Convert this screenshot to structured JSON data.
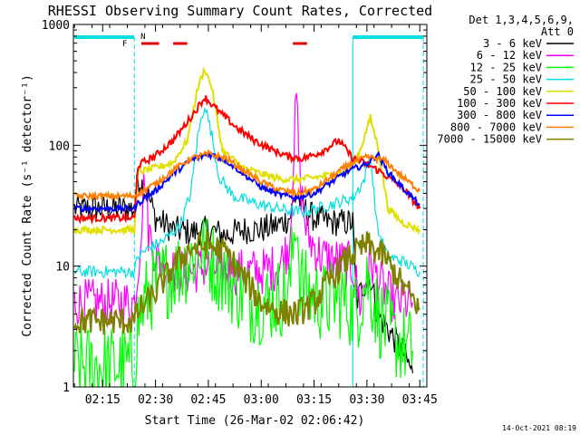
{
  "chart_data": {
    "type": "line",
    "title": "RHESSI Observing Summary Count Rates, Corrected",
    "xlabel": "Start Time (26-Mar-02 02:06:42)",
    "ylabel": "Corrected Count Rate (s⁻¹ detector⁻¹)",
    "xlim": [
      "02:06:42",
      "03:47:00"
    ],
    "ylim": [
      1,
      1000
    ],
    "yscale": "log",
    "x_ticks": [
      "02:15",
      "02:30",
      "02:45",
      "03:00",
      "03:15",
      "03:30",
      "03:45"
    ],
    "y_ticks": [
      "1",
      "10",
      "100",
      "1000"
    ],
    "legend_header": [
      "Det 1,3,4,5,6,9,",
      "Att 0"
    ],
    "legend_position": "right",
    "footer_date": "14-Oct-2021 08:19",
    "flags": [
      {
        "label": "F",
        "color": "#e00000"
      },
      {
        "label": "N",
        "color": "#00e0e0"
      }
    ],
    "series": [
      {
        "name": "3 - 6 keV",
        "color": "#000000",
        "points": [
          [
            "02:07",
            30
          ],
          [
            "02:24",
            30
          ],
          [
            "02:25",
            55
          ],
          [
            "02:28",
            38
          ],
          [
            "02:30",
            25
          ],
          [
            "02:35",
            20
          ],
          [
            "02:40",
            19
          ],
          [
            "02:45",
            20
          ],
          [
            "02:50",
            18
          ],
          [
            "02:55",
            20
          ],
          [
            "03:00",
            20
          ],
          [
            "03:05",
            22
          ],
          [
            "03:08",
            25
          ],
          [
            "03:10",
            40
          ],
          [
            "03:12",
            30
          ],
          [
            "03:15",
            25
          ],
          [
            "03:20",
            23
          ],
          [
            "03:26",
            23
          ],
          [
            "03:27",
            5
          ],
          [
            "03:29",
            7
          ],
          [
            "03:31",
            8
          ],
          [
            "03:33",
            4
          ],
          [
            "03:36",
            3
          ],
          [
            "03:40",
            2
          ],
          [
            "03:43",
            1.3
          ]
        ]
      },
      {
        "name": "6 - 12 keV",
        "color": "#ff00ff",
        "points": [
          [
            "02:07",
            5
          ],
          [
            "02:24",
            5
          ],
          [
            "02:25",
            9
          ],
          [
            "02:27",
            60
          ],
          [
            "02:28",
            20
          ],
          [
            "02:30",
            12
          ],
          [
            "02:35",
            9
          ],
          [
            "02:40",
            9
          ],
          [
            "02:45",
            10
          ],
          [
            "02:50",
            9
          ],
          [
            "02:55",
            9
          ],
          [
            "03:00",
            9
          ],
          [
            "03:05",
            10
          ],
          [
            "03:08",
            15
          ],
          [
            "03:10",
            250
          ],
          [
            "03:11",
            50
          ],
          [
            "03:13",
            18
          ],
          [
            "03:17",
            12
          ],
          [
            "03:22",
            11
          ],
          [
            "03:26",
            10
          ],
          [
            "03:28",
            5
          ],
          [
            "03:31",
            11
          ],
          [
            "03:34",
            7
          ],
          [
            "03:38",
            5
          ],
          [
            "03:43",
            5
          ]
        ]
      },
      {
        "name": "12 - 25 keV",
        "color": "#00ff00",
        "points": [
          [
            "02:07",
            1.5
          ],
          [
            "02:24",
            1.5
          ],
          [
            "02:25",
            3.5
          ],
          [
            "02:28",
            6
          ],
          [
            "02:33",
            8
          ],
          [
            "02:38",
            10
          ],
          [
            "02:43",
            14
          ],
          [
            "02:47",
            10
          ],
          [
            "02:52",
            7
          ],
          [
            "02:57",
            5
          ],
          [
            "03:02",
            5
          ],
          [
            "03:08",
            6
          ],
          [
            "03:10",
            30
          ],
          [
            "03:11",
            8
          ],
          [
            "03:13",
            6
          ],
          [
            "03:18",
            5
          ],
          [
            "03:23",
            5.5
          ],
          [
            "03:27",
            4
          ],
          [
            "03:30",
            8
          ],
          [
            "03:33",
            4
          ],
          [
            "03:38",
            2.5
          ],
          [
            "03:43",
            2
          ]
        ]
      },
      {
        "name": "25 - 50 keV",
        "color": "#00e0e0",
        "points": [
          [
            "02:07",
            9
          ],
          [
            "02:24",
            9
          ],
          [
            "02:25",
            12
          ],
          [
            "02:28",
            14
          ],
          [
            "02:32",
            16
          ],
          [
            "02:37",
            22
          ],
          [
            "02:40",
            40
          ],
          [
            "02:42",
            120
          ],
          [
            "02:44",
            220
          ],
          [
            "02:46",
            120
          ],
          [
            "02:48",
            55
          ],
          [
            "02:52",
            38
          ],
          [
            "02:57",
            34
          ],
          [
            "03:02",
            31
          ],
          [
            "03:07",
            29
          ],
          [
            "03:11",
            28
          ],
          [
            "03:16",
            30
          ],
          [
            "03:21",
            33
          ],
          [
            "03:26",
            37
          ],
          [
            "03:29",
            50
          ],
          [
            "03:31",
            80
          ],
          [
            "03:33",
            20
          ],
          [
            "03:36",
            12
          ],
          [
            "03:40",
            11
          ],
          [
            "03:45",
            9
          ]
        ]
      },
      {
        "name": "50 - 100 keV",
        "color": "#e0e000",
        "points": [
          [
            "02:07",
            20
          ],
          [
            "02:24",
            20
          ],
          [
            "02:25",
            60
          ],
          [
            "02:30",
            65
          ],
          [
            "02:35",
            72
          ],
          [
            "02:39",
            110
          ],
          [
            "02:42",
            300
          ],
          [
            "02:44",
            430
          ],
          [
            "02:46",
            300
          ],
          [
            "02:49",
            90
          ],
          [
            "02:55",
            65
          ],
          [
            "03:00",
            58
          ],
          [
            "03:05",
            53
          ],
          [
            "03:10",
            52
          ],
          [
            "03:15",
            54
          ],
          [
            "03:20",
            57
          ],
          [
            "03:25",
            62
          ],
          [
            "03:28",
            90
          ],
          [
            "03:31",
            170
          ],
          [
            "03:33",
            100
          ],
          [
            "03:36",
            30
          ],
          [
            "03:40",
            23
          ],
          [
            "03:45",
            20
          ]
        ]
      },
      {
        "name": "100 - 300 keV",
        "color": "#ff0000",
        "points": [
          [
            "02:07",
            25
          ],
          [
            "02:24",
            25
          ],
          [
            "02:25",
            68
          ],
          [
            "02:30",
            82
          ],
          [
            "02:35",
            110
          ],
          [
            "02:40",
            170
          ],
          [
            "02:44",
            250
          ],
          [
            "02:48",
            190
          ],
          [
            "02:53",
            140
          ],
          [
            "02:58",
            110
          ],
          [
            "03:03",
            92
          ],
          [
            "03:08",
            80
          ],
          [
            "03:12",
            78
          ],
          [
            "03:17",
            88
          ],
          [
            "03:22",
            110
          ],
          [
            "03:26",
            78
          ],
          [
            "03:30",
            70
          ],
          [
            "03:34",
            60
          ],
          [
            "03:40",
            45
          ],
          [
            "03:45",
            30
          ]
        ]
      },
      {
        "name": "300 - 800 keV",
        "color": "#0000ff",
        "points": [
          [
            "02:07",
            30
          ],
          [
            "02:24",
            30
          ],
          [
            "02:25",
            33
          ],
          [
            "02:30",
            42
          ],
          [
            "02:35",
            58
          ],
          [
            "02:40",
            75
          ],
          [
            "02:45",
            85
          ],
          [
            "02:50",
            75
          ],
          [
            "02:55",
            58
          ],
          [
            "03:00",
            45
          ],
          [
            "03:05",
            39
          ],
          [
            "03:10",
            37
          ],
          [
            "03:15",
            40
          ],
          [
            "03:20",
            50
          ],
          [
            "03:25",
            62
          ],
          [
            "03:30",
            70
          ],
          [
            "03:33",
            85
          ],
          [
            "03:36",
            60
          ],
          [
            "03:40",
            45
          ],
          [
            "03:45",
            32
          ]
        ]
      },
      {
        "name": "800 - 7000 keV",
        "color": "#ff8000",
        "points": [
          [
            "02:07",
            38
          ],
          [
            "02:24",
            38
          ],
          [
            "02:25",
            40
          ],
          [
            "02:30",
            48
          ],
          [
            "02:35",
            62
          ],
          [
            "02:40",
            78
          ],
          [
            "02:45",
            85
          ],
          [
            "02:50",
            78
          ],
          [
            "02:55",
            62
          ],
          [
            "03:00",
            50
          ],
          [
            "03:05",
            43
          ],
          [
            "03:10",
            40
          ],
          [
            "03:15",
            43
          ],
          [
            "03:20",
            55
          ],
          [
            "03:25",
            70
          ],
          [
            "03:30",
            80
          ],
          [
            "03:35",
            75
          ],
          [
            "03:40",
            55
          ],
          [
            "03:45",
            42
          ]
        ]
      },
      {
        "name": "7000 - 15000 keV",
        "color": "#808000",
        "points": [
          [
            "02:07",
            3.5
          ],
          [
            "02:24",
            3.5
          ],
          [
            "02:25",
            4.2
          ],
          [
            "02:30",
            6
          ],
          [
            "02:35",
            10
          ],
          [
            "02:40",
            14
          ],
          [
            "02:45",
            15
          ],
          [
            "02:50",
            13
          ],
          [
            "02:55",
            8
          ],
          [
            "03:00",
            5
          ],
          [
            "03:05",
            4.2
          ],
          [
            "03:10",
            4
          ],
          [
            "03:15",
            5
          ],
          [
            "03:20",
            8
          ],
          [
            "03:25",
            12
          ],
          [
            "03:30",
            15
          ],
          [
            "03:35",
            12
          ],
          [
            "03:40",
            7
          ],
          [
            "03:45",
            4.5
          ]
        ]
      }
    ]
  }
}
